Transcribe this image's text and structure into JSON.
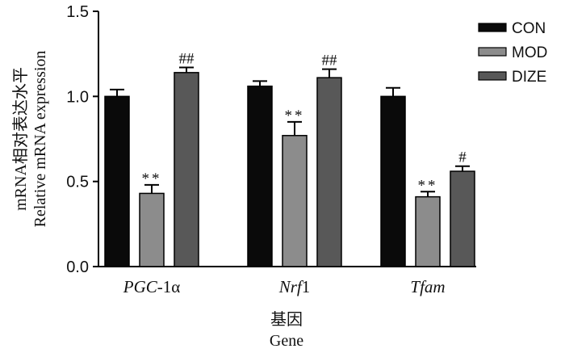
{
  "chart_data": {
    "type": "bar",
    "categories": [
      {
        "parts": [
          {
            "text": "PGC",
            "italic": true
          },
          {
            "text": "-1α",
            "italic": false
          }
        ]
      },
      {
        "parts": [
          {
            "text": "Nrf",
            "italic": true
          },
          {
            "text": "1",
            "italic": false
          }
        ]
      },
      {
        "parts": [
          {
            "text": "Tfam",
            "italic": true
          }
        ]
      }
    ],
    "category_names": [
      "PGC-1α",
      "Nrf1",
      "Tfam"
    ],
    "series": [
      {
        "name": "CON",
        "color": "#0a0a0a",
        "values": [
          1.0,
          1.06,
          1.0
        ],
        "errors": [
          0.04,
          0.03,
          0.05
        ],
        "marks": [
          "",
          "",
          ""
        ]
      },
      {
        "name": "MOD",
        "color": "#8c8c8c",
        "values": [
          0.43,
          0.77,
          0.41
        ],
        "errors": [
          0.05,
          0.08,
          0.03
        ],
        "marks": [
          "**",
          "**",
          "**"
        ]
      },
      {
        "name": "DIZE",
        "color": "#585858",
        "values": [
          1.14,
          1.11,
          0.56
        ],
        "errors": [
          0.03,
          0.05,
          0.03
        ],
        "marks": [
          "##",
          "##",
          "#"
        ]
      }
    ],
    "ylabel_cn": "mRNA相对表达水平",
    "ylabel_en": "Relative mRNA expression",
    "xlabel_cn": "基因",
    "xlabel_en": "Gene",
    "ylim": [
      0,
      1.5
    ],
    "yticks": [
      "0.0",
      "0.5",
      "1.0",
      "1.5"
    ],
    "legend_position": "top-right",
    "grid": false,
    "error_bars": true
  }
}
